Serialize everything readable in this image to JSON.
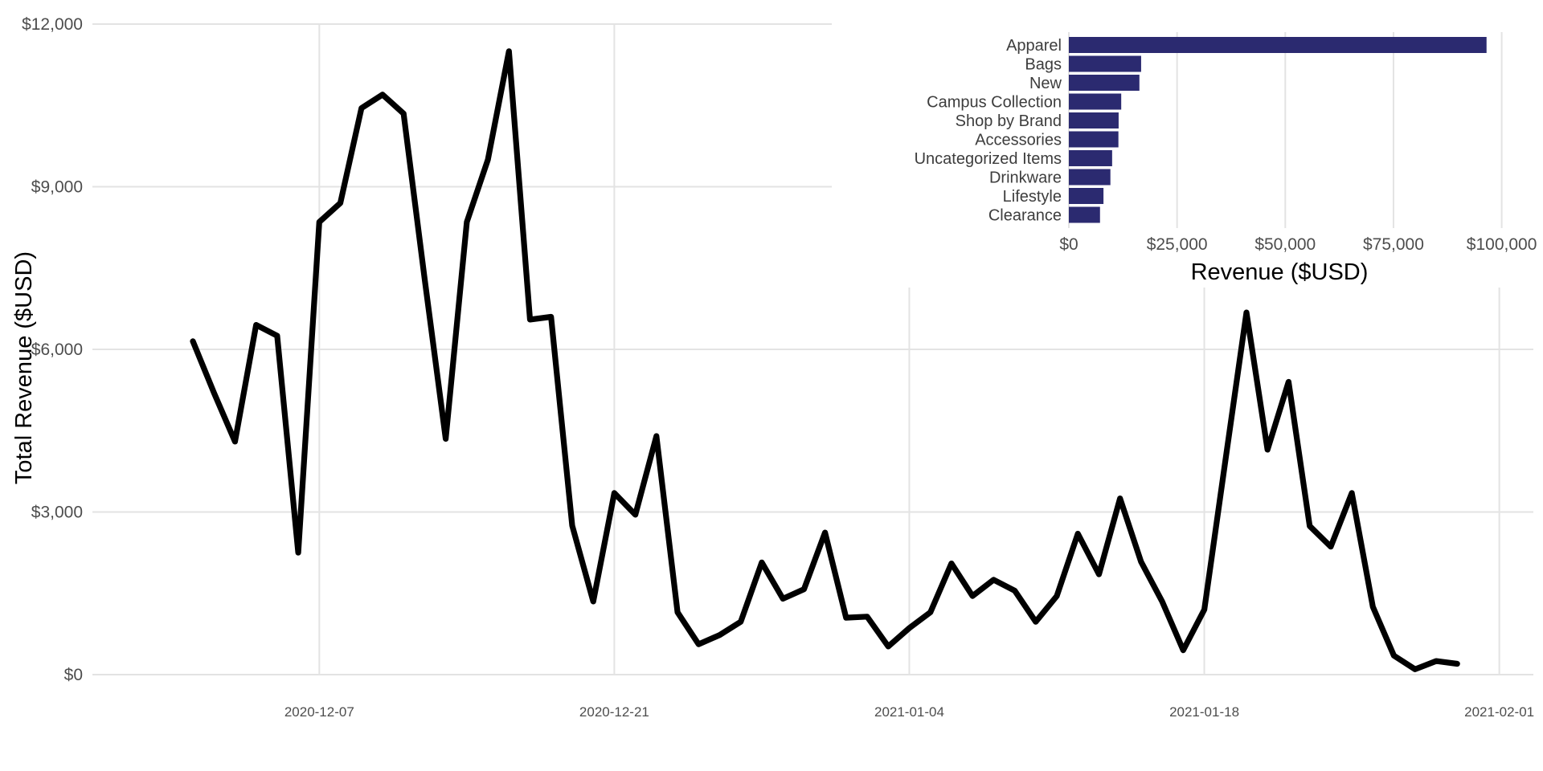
{
  "page": {
    "background": "#ffffff"
  },
  "colors": {
    "line": "#000000",
    "bar": "#2b2a70",
    "grid": "#e3e3e3",
    "tick_text": "#4d4d4d",
    "category_text": "#3d3d3d",
    "title_text": "#000000"
  },
  "chart_data": [
    {
      "type": "line",
      "name": "daily-total-revenue",
      "title": "",
      "xlabel": "",
      "ylabel": "Total Revenue ($USD)",
      "grid": true,
      "legend": "none",
      "ylim": [
        0,
        12000
      ],
      "y_ticks": [
        {
          "value": 0,
          "label": "$0"
        },
        {
          "value": 3000,
          "label": "$3,000"
        },
        {
          "value": 6000,
          "label": "$6,000"
        },
        {
          "value": 9000,
          "label": "$9,000"
        },
        {
          "value": 12000,
          "label": "$12,000"
        }
      ],
      "x_tick_dates": [
        "2020-12-07",
        "2020-12-21",
        "2021-01-04",
        "2021-01-18",
        "2021-02-01"
      ],
      "dates": [
        "2020-12-01",
        "2020-12-02",
        "2020-12-03",
        "2020-12-04",
        "2020-12-05",
        "2020-12-06",
        "2020-12-07",
        "2020-12-08",
        "2020-12-09",
        "2020-12-10",
        "2020-12-11",
        "2020-12-12",
        "2020-12-13",
        "2020-12-14",
        "2020-12-15",
        "2020-12-16",
        "2020-12-17",
        "2020-12-18",
        "2020-12-19",
        "2020-12-20",
        "2020-12-21",
        "2020-12-22",
        "2020-12-23",
        "2020-12-24",
        "2020-12-25",
        "2020-12-26",
        "2020-12-27",
        "2020-12-28",
        "2020-12-29",
        "2020-12-30",
        "2020-12-31",
        "2021-01-01",
        "2021-01-02",
        "2021-01-03",
        "2021-01-04",
        "2021-01-05",
        "2021-01-06",
        "2021-01-07",
        "2021-01-08",
        "2021-01-09",
        "2021-01-10",
        "2021-01-11",
        "2021-01-12",
        "2021-01-13",
        "2021-01-14",
        "2021-01-15",
        "2021-01-16",
        "2021-01-17",
        "2021-01-18",
        "2021-01-19",
        "2021-01-20",
        "2021-01-21",
        "2021-01-22",
        "2021-01-23",
        "2021-01-24",
        "2021-01-25",
        "2021-01-26",
        "2021-01-27",
        "2021-01-28",
        "2021-01-29",
        "2021-01-30"
      ],
      "values": [
        6150,
        5200,
        4300,
        6450,
        6250,
        2250,
        8350,
        8700,
        10450,
        10700,
        10350,
        7300,
        4350,
        8350,
        9500,
        11500,
        6550,
        6600,
        2750,
        1350,
        3350,
        2950,
        4400,
        1150,
        560,
        730,
        975,
        2070,
        1400,
        1575,
        2620,
        1050,
        1070,
        520,
        860,
        1150,
        2050,
        1450,
        1750,
        1550,
        975,
        1450,
        2600,
        1850,
        3250,
        2080,
        1350,
        450,
        1200,
        3950,
        6680,
        4150,
        5400,
        2740,
        2360,
        3350,
        1250,
        350,
        100,
        250,
        200
      ]
    },
    {
      "type": "bar",
      "name": "revenue-by-category",
      "orientation": "horizontal",
      "title": "",
      "xlabel": "Revenue ($USD)",
      "ylabel": "",
      "grid": true,
      "legend": "none",
      "xlim": [
        0,
        100000
      ],
      "x_ticks": [
        {
          "value": 0,
          "label": "$0"
        },
        {
          "value": 25000,
          "label": "$25,000"
        },
        {
          "value": 50000,
          "label": "$50,000"
        },
        {
          "value": 75000,
          "label": "$75,000"
        },
        {
          "value": 100000,
          "label": "$100,000"
        }
      ],
      "categories": [
        "Apparel",
        "Bags",
        "New",
        "Campus Collection",
        "Shop by Brand",
        "Accessories",
        "Uncategorized Items",
        "Drinkware",
        "Lifestyle",
        "Clearance"
      ],
      "values": [
        96500,
        16700,
        16300,
        12100,
        11500,
        11450,
        10000,
        9600,
        8000,
        7200
      ]
    }
  ]
}
